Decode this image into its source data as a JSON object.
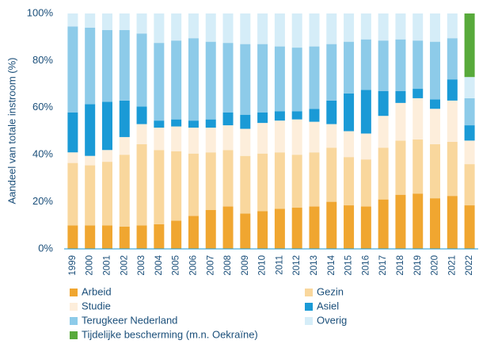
{
  "chart_data": {
    "type": "stacked_bar",
    "y_label": "Aandeel van totale instroom (%)",
    "categories": [
      "1999",
      "2000",
      "2001",
      "2002",
      "2003",
      "2004",
      "2005",
      "2006",
      "2007",
      "2008",
      "2009",
      "2010",
      "2011",
      "2012",
      "2013",
      "2014",
      "2015",
      "2016",
      "2017",
      "2018",
      "2019",
      "2020",
      "2021",
      "2022"
    ],
    "series": [
      {
        "name": "Arbeid",
        "color": "#f0a630",
        "values": [
          10,
          10,
          10,
          9.5,
          10,
          10.5,
          12,
          14,
          16.5,
          18,
          15,
          16,
          17,
          17.5,
          18,
          20,
          18.5,
          18,
          21,
          23,
          23.5,
          21.5,
          22.5,
          18.5
        ]
      },
      {
        "name": "Gezin",
        "color": "#f9d79d",
        "values": [
          26.5,
          25.5,
          27,
          30.5,
          34.5,
          31.5,
          29.5,
          26.5,
          24.5,
          24,
          24.5,
          24.5,
          24,
          22.5,
          23,
          23,
          20.5,
          20,
          22,
          23,
          23,
          23,
          23,
          17.5
        ]
      },
      {
        "name": "Studie",
        "color": "#fdeedb",
        "values": [
          4.5,
          4,
          5,
          7.5,
          8.5,
          9.5,
          10.5,
          11,
          10.5,
          10.5,
          11.5,
          13,
          13.5,
          15,
          13,
          10,
          11,
          11,
          13.5,
          16,
          17.5,
          15,
          17.5,
          10
        ]
      },
      {
        "name": "Asiel",
        "color": "#1a9ad6",
        "values": [
          17,
          22,
          20.5,
          15.5,
          7.5,
          3,
          3,
          3,
          3.5,
          5.5,
          6,
          4.5,
          4,
          3.5,
          5.5,
          10,
          16,
          18.5,
          10.5,
          5,
          4,
          4,
          9,
          6.5
        ]
      },
      {
        "name": "Terugkeer Nederland",
        "color": "#8dcbe9",
        "values": [
          36.5,
          32.5,
          30.5,
          30,
          31,
          33,
          33.5,
          35,
          33,
          29.5,
          30,
          29,
          27.5,
          27,
          26.5,
          24,
          22,
          21.5,
          21.5,
          22,
          20.5,
          24.5,
          17.5,
          11.5
        ]
      },
      {
        "name": "Overig",
        "color": "#d5edf8",
        "values": [
          5.5,
          6,
          7,
          7,
          8.5,
          12.5,
          11.5,
          10.5,
          12,
          12.5,
          13,
          13,
          14,
          14.5,
          14,
          13,
          12,
          11,
          11.5,
          11,
          11.5,
          12,
          10.5,
          9
        ]
      },
      {
        "name": "Tijdelijke bescherming (m.n. Oekraïne)",
        "color": "#58aa3b",
        "values": [
          null,
          null,
          null,
          null,
          null,
          null,
          null,
          null,
          null,
          null,
          null,
          null,
          null,
          null,
          null,
          null,
          null,
          null,
          null,
          null,
          null,
          null,
          null,
          27
        ]
      }
    ],
    "ylim": [
      0,
      100
    ],
    "yticks": [
      {
        "value": 0,
        "label": "0%"
      },
      {
        "value": 20,
        "label": "20%"
      },
      {
        "value": 40,
        "label": "40%"
      },
      {
        "value": 60,
        "label": "60%"
      },
      {
        "value": 80,
        "label": "80%"
      },
      {
        "value": 100,
        "label": "100%"
      }
    ]
  }
}
